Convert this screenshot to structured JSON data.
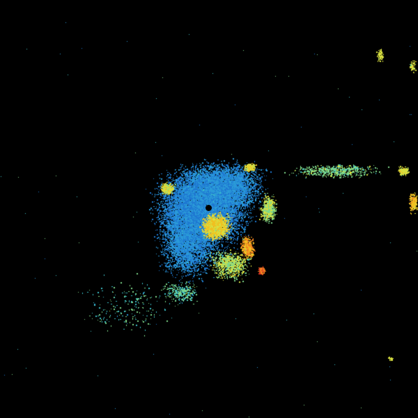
{
  "radar": {
    "background": "#000000",
    "palette": [
      "#1e78d2",
      "#2a9ad8",
      "#3cc0c8",
      "#7ed88a",
      "#d8e040",
      "#f0c020",
      "#f08020",
      "#d83020"
    ],
    "site_marker_color": "#000000"
  }
}
